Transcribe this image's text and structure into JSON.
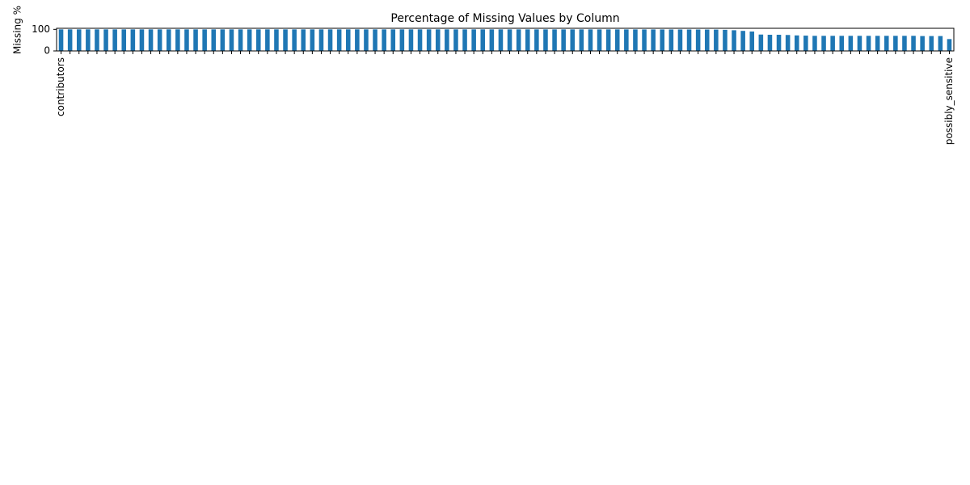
{
  "chart_data": {
    "type": "bar",
    "title": "Percentage of Missing Values by Column",
    "y_label": "Missing %",
    "categories": [
      "contributors",
      null,
      null,
      null,
      null,
      null,
      null,
      null,
      null,
      null,
      null,
      null,
      null,
      null,
      null,
      null,
      null,
      null,
      null,
      null,
      null,
      null,
      null,
      null,
      null,
      null,
      null,
      null,
      null,
      null,
      null,
      null,
      null,
      null,
      null,
      null,
      null,
      null,
      null,
      null,
      null,
      null,
      null,
      null,
      null,
      null,
      null,
      null,
      null,
      null,
      null,
      null,
      null,
      null,
      null,
      null,
      null,
      null,
      null,
      null,
      null,
      null,
      null,
      null,
      null,
      null,
      null,
      null,
      null,
      null,
      null,
      null,
      null,
      null,
      null,
      null,
      null,
      null,
      null,
      null,
      null,
      null,
      null,
      null,
      null,
      null,
      null,
      null,
      null,
      null,
      null,
      null,
      null,
      null,
      null,
      null,
      null,
      null,
      null,
      "possibly_sensitive"
    ],
    "values": [
      100,
      100,
      100,
      100,
      100,
      100,
      100,
      100,
      100,
      100,
      100,
      100,
      100,
      100,
      100,
      100,
      100,
      100,
      100,
      100,
      100,
      100,
      100,
      100,
      100,
      100,
      100,
      100,
      100,
      100,
      100,
      100,
      100,
      100,
      100,
      100,
      100,
      100,
      100,
      100,
      100,
      100,
      100,
      100,
      100,
      100,
      100,
      100,
      100,
      100,
      99.9,
      99.9,
      99.9,
      99.9,
      99.9,
      99.9,
      99.9,
      99.9,
      99.9,
      99.9,
      99.8,
      99.8,
      99.8,
      99.8,
      99.8,
      99.7,
      99.7,
      99.6,
      99.5,
      99.5,
      99.4,
      99.3,
      99.2,
      99,
      98,
      96,
      93,
      90,
      76,
      75,
      75,
      74,
      72,
      71,
      70,
      70,
      70,
      70,
      70,
      70,
      70,
      70,
      70,
      70,
      70,
      70,
      69,
      69,
      69,
      55
    ],
    "color": "#1f77b4",
    "ylim": [
      0,
      105
    ],
    "yticks": [
      0,
      100
    ]
  }
}
